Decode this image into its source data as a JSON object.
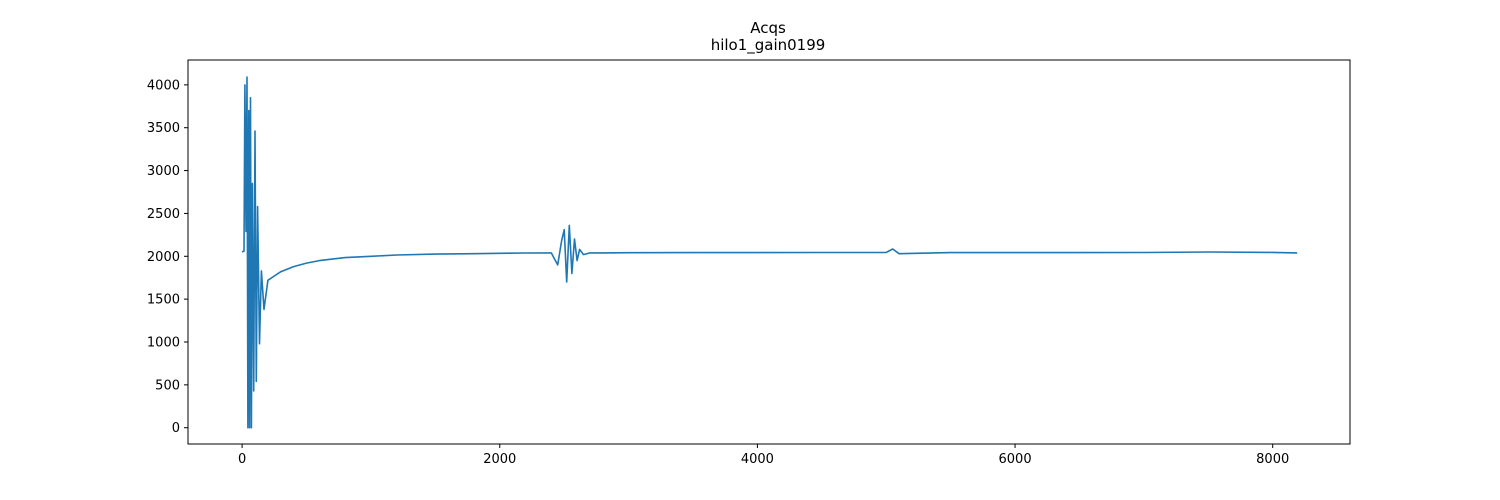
{
  "chart_data": {
    "type": "line",
    "title": "Acqs",
    "subtitle": "hilo1_gain0199",
    "xlabel": "",
    "ylabel": "",
    "xlim": [
      -420,
      8600
    ],
    "ylim": [
      -190,
      4290
    ],
    "x_ticks": [
      0,
      2000,
      4000,
      6000,
      8000
    ],
    "x_tick_labels": [
      "0",
      "2000",
      "4000",
      "6000",
      "8000"
    ],
    "y_ticks": [
      0,
      500,
      1000,
      1500,
      2000,
      2500,
      3000,
      3500,
      4000
    ],
    "y_tick_labels": [
      "0",
      "500",
      "1000",
      "1500",
      "2000",
      "2500",
      "3000",
      "3500",
      "4000"
    ],
    "grid": false,
    "legend": "none",
    "colors": {
      "line": "#1f77b4",
      "axes": "#000000",
      "background": "#ffffff"
    },
    "series": [
      {
        "x": [
          0,
          15,
          22,
          30,
          38,
          45,
          52,
          58,
          65,
          72,
          80,
          90,
          100,
          110,
          120,
          135,
          150,
          170,
          200,
          250,
          300,
          400,
          500,
          600,
          800,
          1000,
          1200,
          1500,
          1800,
          2000,
          2200,
          2400,
          2450,
          2480,
          2500,
          2520,
          2540,
          2560,
          2580,
          2600,
          2620,
          2650,
          2700,
          2800,
          3000,
          3500,
          4000,
          4500,
          5000,
          5050,
          5100,
          5500,
          6000,
          6500,
          7000,
          7500,
          8000,
          8190
        ],
        "y": [
          2050,
          2060,
          4000,
          2290,
          4090,
          0,
          3700,
          0,
          3850,
          0,
          2850,
          430,
          3460,
          540,
          2580,
          980,
          1830,
          1380,
          1720,
          1770,
          1820,
          1880,
          1920,
          1950,
          1985,
          2000,
          2015,
          2025,
          2030,
          2035,
          2038,
          2040,
          1900,
          2180,
          2310,
          1700,
          2360,
          1800,
          2200,
          1950,
          2080,
          2020,
          2040,
          2040,
          2042,
          2043,
          2043,
          2044,
          2045,
          2085,
          2030,
          2043,
          2043,
          2043,
          2044,
          2050,
          2045,
          2040
        ]
      }
    ]
  }
}
